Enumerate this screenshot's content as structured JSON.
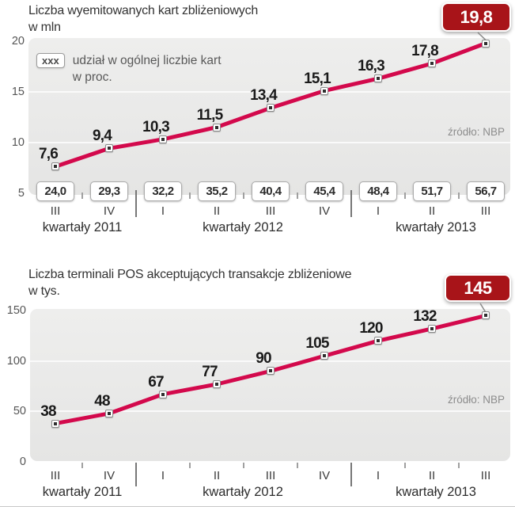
{
  "colors": {
    "line": "#d3094c",
    "badge_bg": "#a81419",
    "badge_text": "#ffffff",
    "plot_bg": "#e9e9e8",
    "grid": "#fafafa"
  },
  "chart_data": [
    {
      "type": "line",
      "title": "Liczba wyemitowanych kart zbliżeniowych",
      "title_line2": "w mln",
      "source": "źródło: NBP",
      "legend": {
        "marker": "xxx",
        "label_line1": "udział w ogólnej liczbie kart",
        "label_line2": "w proc."
      },
      "categories": [
        "III",
        "IV",
        "I",
        "II",
        "III",
        "IV",
        "I",
        "II",
        "III"
      ],
      "group_labels": [
        "kwartały 2011",
        "kwartały 2012",
        "kwartały 2013"
      ],
      "values": [
        7.6,
        9.4,
        10.3,
        11.5,
        13.4,
        15.1,
        16.3,
        17.8,
        19.8
      ],
      "value_labels": [
        "7,6",
        "9,4",
        "10,3",
        "11,5",
        "13,4",
        "15,1",
        "16,3",
        "17,8"
      ],
      "highlight_label": "19,8",
      "share_labels": [
        "24,0",
        "29,3",
        "32,2",
        "35,2",
        "40,4",
        "45,4",
        "48,4",
        "51,7",
        "56,7"
      ],
      "y_tick_labels": [
        "20",
        "15",
        "10",
        "5"
      ],
      "y_tick_values": [
        20,
        15,
        10,
        5
      ],
      "grid_values": [
        15,
        10
      ],
      "ylim": [
        5,
        20
      ],
      "xlabel": "",
      "ylabel": "w mln"
    },
    {
      "type": "line",
      "title": "Liczba terminali POS akceptujących transakcje zbliżeniowe",
      "title_line2": "w tys.",
      "source": "źródło: NBP",
      "categories": [
        "III",
        "IV",
        "I",
        "II",
        "III",
        "IV",
        "I",
        "II",
        "III"
      ],
      "group_labels": [
        "kwartały 2011",
        "kwartały 2012",
        "kwartały 2013"
      ],
      "values": [
        38,
        48,
        67,
        77,
        90,
        105,
        120,
        132,
        145
      ],
      "value_labels": [
        "38",
        "48",
        "67",
        "77",
        "90",
        "105",
        "120",
        "132"
      ],
      "highlight_label": "145",
      "y_tick_labels": [
        "150",
        "100",
        "50",
        "0"
      ],
      "y_tick_values": [
        150,
        100,
        50,
        0
      ],
      "grid_values": [
        100,
        50
      ],
      "ylim": [
        0,
        150
      ],
      "xlabel": "",
      "ylabel": "w tys."
    }
  ]
}
